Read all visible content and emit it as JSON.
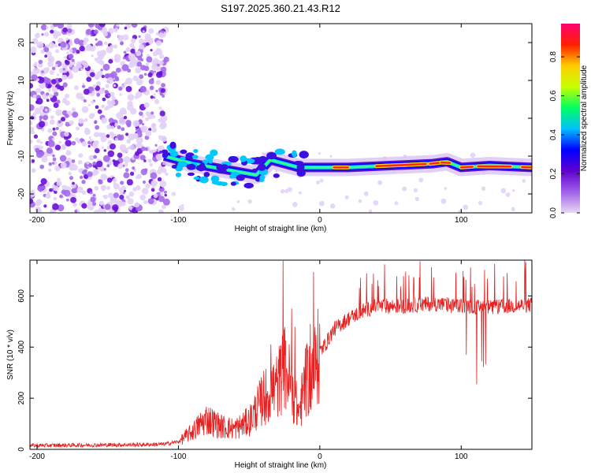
{
  "chart_data": [
    {
      "type": "heatmap",
      "title": "S197.2025.360.21.43.R12",
      "xlabel": "Height of straight line (km)",
      "ylabel": "Frequency (Hz)",
      "xlim": [
        -205,
        150
      ],
      "ylim": [
        -25,
        25
      ],
      "xticks": [
        -200,
        -100,
        0,
        100
      ],
      "yticks": [
        -20,
        -10,
        0,
        10,
        20
      ],
      "colorbar": {
        "label": "Normalized spectral amplitude",
        "range": [
          0,
          0.97
        ],
        "ticks": [
          0.0,
          0.2,
          0.4,
          0.6,
          0.8
        ],
        "tick_labels": [
          "0.0",
          "0.2",
          "0.4",
          "0.6",
          "0.8"
        ],
        "stops": [
          "#e8d8f4",
          "#a060e8",
          "#6000d0",
          "#0000ff",
          "#00c0ff",
          "#00ff60",
          "#c8ff00",
          "#ffcc00",
          "#ff2000",
          "#ff0070"
        ]
      },
      "noise_region": {
        "x_from": -205,
        "x_to": -108,
        "y_from": -25,
        "y_to": 25
      },
      "signal_track": [
        {
          "x": -110,
          "y": -10
        },
        {
          "x": -90,
          "y": -12
        },
        {
          "x": -75,
          "y": -13
        },
        {
          "x": -60,
          "y": -14
        },
        {
          "x": -45,
          "y": -15
        },
        {
          "x": -35,
          "y": -11
        },
        {
          "x": -25,
          "y": -12
        },
        {
          "x": -15,
          "y": -13
        },
        {
          "x": 0,
          "y": -13
        },
        {
          "x": 20,
          "y": -13
        },
        {
          "x": 50,
          "y": -12.5
        },
        {
          "x": 80,
          "y": -12
        },
        {
          "x": 90,
          "y": -11.5
        },
        {
          "x": 100,
          "y": -13
        },
        {
          "x": 120,
          "y": -12.5
        },
        {
          "x": 150,
          "y": -13
        }
      ]
    },
    {
      "type": "line",
      "xlabel": "Height of straight line (km)",
      "ylabel": "SNR (10 * v/v)",
      "xlim": [
        -205,
        150
      ],
      "ylim": [
        0,
        740
      ],
      "xticks": [
        -200,
        -100,
        0,
        100
      ],
      "yticks": [
        0,
        200,
        400,
        600
      ],
      "color": "#e82020",
      "series": [
        {
          "name": "SNR",
          "x": [
            -205,
            -130,
            -110,
            -100,
            -90,
            -80,
            -70,
            -60,
            -50,
            -40,
            -30,
            -25,
            -20,
            -15,
            -10,
            -5,
            0,
            5,
            10,
            20,
            30,
            40,
            60,
            80,
            100,
            120,
            150
          ],
          "values": [
            15,
            18,
            20,
            30,
            70,
            120,
            90,
            80,
            110,
            200,
            250,
            320,
            250,
            140,
            260,
            300,
            380,
            420,
            470,
            510,
            540,
            560,
            560,
            570,
            560,
            555,
            565
          ]
        }
      ]
    }
  ]
}
